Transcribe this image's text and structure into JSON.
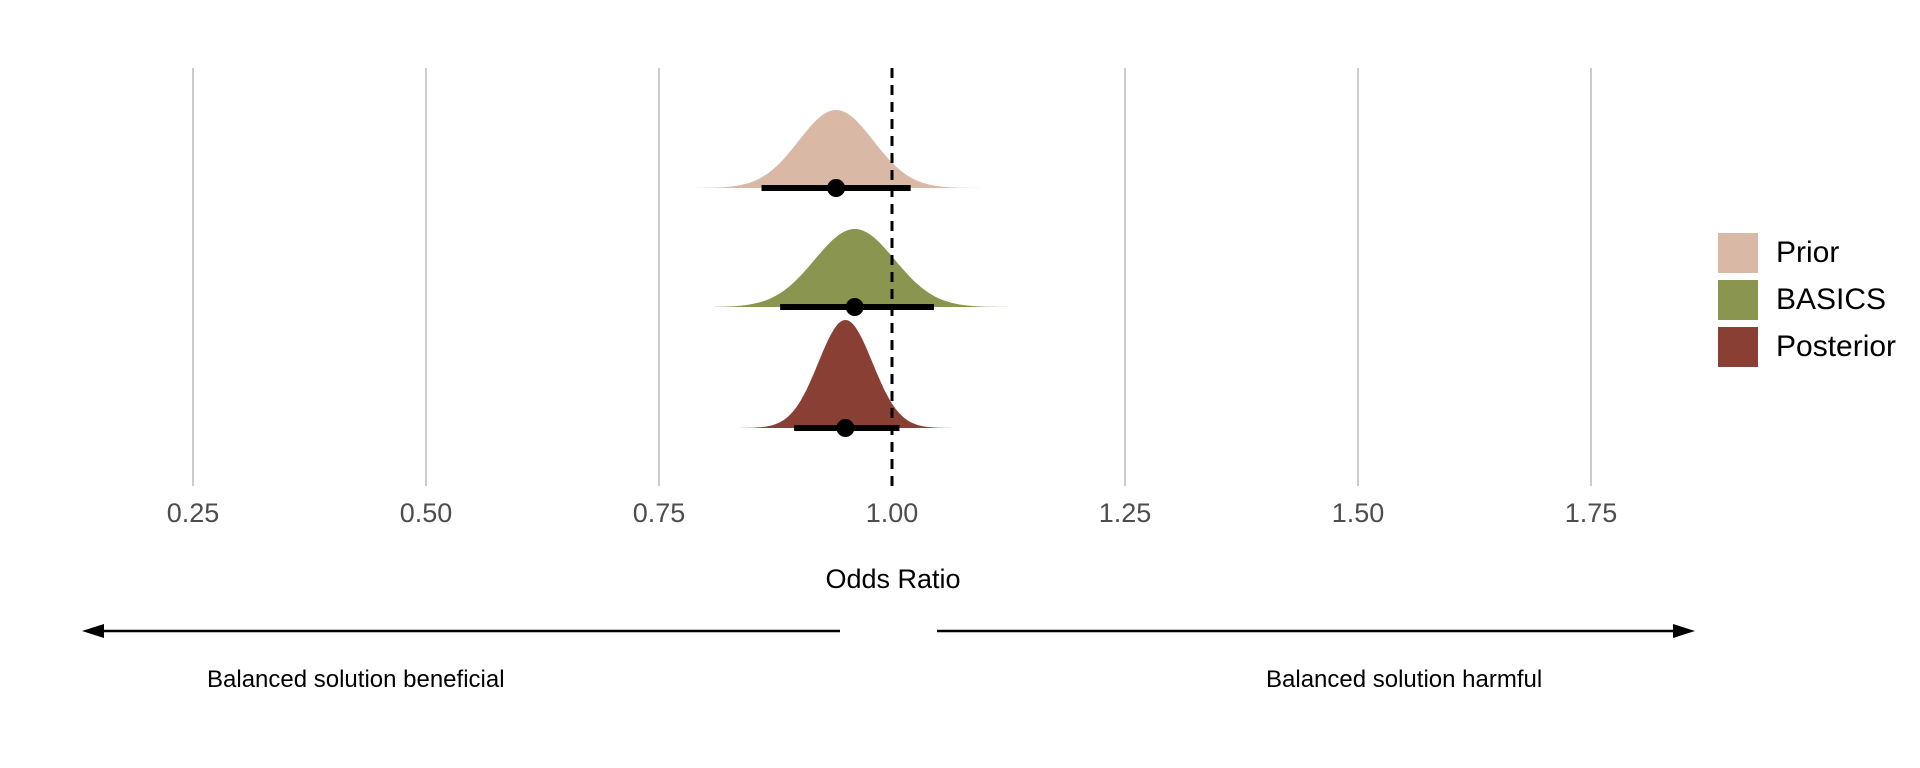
{
  "chart_data": {
    "type": "density",
    "xlabel": "Odds Ratio",
    "xlim": [
      0.05,
      1.85
    ],
    "x_ticks": [
      0.25,
      0.5,
      0.75,
      1.0,
      1.25,
      1.5,
      1.75
    ],
    "x_tick_labels": [
      "0.25",
      "0.50",
      "0.75",
      "1.00",
      "1.25",
      "1.50",
      "1.75"
    ],
    "grid": "vertical major lines",
    "reference_line": {
      "x": 1.0,
      "style": "dashed"
    },
    "legend_position": "right",
    "series": [
      {
        "name": "Prior",
        "color": "#D9B8A5",
        "median": 0.94,
        "ci": [
          0.86,
          1.02
        ],
        "sd": 0.04,
        "tail_range": [
          0.79,
          1.11
        ]
      },
      {
        "name": "BASICS",
        "color": "#8A9650",
        "median": 0.96,
        "ci": [
          0.88,
          1.045
        ],
        "sd": 0.043,
        "tail_range": [
          0.81,
          1.14
        ]
      },
      {
        "name": "Posterior",
        "color": "#8A3F35",
        "median": 0.95,
        "ci": [
          0.895,
          1.008
        ],
        "sd": 0.029,
        "tail_range": [
          0.83,
          1.07
        ]
      }
    ],
    "annotations": {
      "left": "Balanced solution beneficial",
      "right": "Balanced solution harmful"
    }
  }
}
